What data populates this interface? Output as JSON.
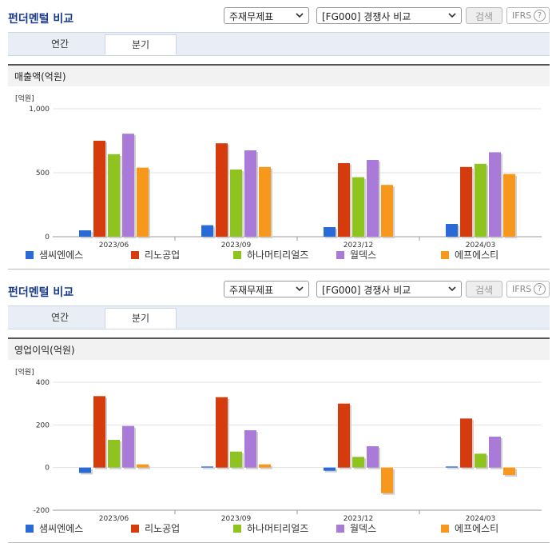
{
  "toolbar": {
    "title": "펀더멘털 비교",
    "select1": "주재무제표",
    "select2": "[FG000] 경쟁사 비교",
    "search_label": "검색",
    "ifrs_label": "IFRS",
    "help_label": "?"
  },
  "tabs": [
    {
      "label": "연간"
    },
    {
      "label": "분기"
    }
  ],
  "active_tab": "분기",
  "colors": {
    "accent": "#1a3c8c"
  },
  "series": [
    {
      "name": "샘씨엔에스",
      "color": "#2a6ad6"
    },
    {
      "name": "리노공업",
      "color": "#d53b0c"
    },
    {
      "name": "하나머티리얼즈",
      "color": "#8fc31f"
    },
    {
      "name": "월덱스",
      "color": "#a97ad8"
    },
    {
      "name": "에프에스티",
      "color": "#f7981d"
    }
  ],
  "chart_data": [
    {
      "type": "bar",
      "title": "매출액(억원)",
      "unit_label": "[억원]",
      "categories": [
        "2023/06",
        "2023/09",
        "2023/12",
        "2024/03"
      ],
      "ylim": [
        0,
        1000
      ],
      "yticks": [
        0,
        500,
        1000
      ],
      "ytick_labels": [
        "0",
        "500",
        "1,000"
      ],
      "series": [
        {
          "name": "샘씨엔에스",
          "values": [
            50,
            90,
            75,
            100
          ]
        },
        {
          "name": "리노공업",
          "values": [
            750,
            730,
            575,
            545
          ]
        },
        {
          "name": "하나머티리얼즈",
          "values": [
            645,
            525,
            465,
            570
          ]
        },
        {
          "name": "월덱스",
          "values": [
            805,
            675,
            600,
            660
          ]
        },
        {
          "name": "에프에스티",
          "values": [
            540,
            545,
            405,
            490
          ]
        }
      ],
      "legend": "bottom",
      "grid": true
    },
    {
      "type": "bar",
      "title": "영업이익(억원)",
      "unit_label": "[억원]",
      "categories": [
        "2023/06",
        "2023/09",
        "2023/12",
        "2024/03"
      ],
      "ylim": [
        -200,
        400
      ],
      "yticks": [
        -200,
        0,
        200,
        400
      ],
      "ytick_labels": [
        "-200",
        "0",
        "200",
        "400"
      ],
      "series": [
        {
          "name": "샘씨엔에스",
          "values": [
            -25,
            5,
            -15,
            5
          ]
        },
        {
          "name": "리노공업",
          "values": [
            335,
            330,
            300,
            230
          ]
        },
        {
          "name": "하나머티리얼즈",
          "values": [
            130,
            75,
            50,
            65
          ]
        },
        {
          "name": "월덱스",
          "values": [
            195,
            175,
            100,
            145
          ]
        },
        {
          "name": "에프에스티",
          "values": [
            15,
            15,
            -120,
            -35
          ]
        }
      ],
      "legend": "bottom",
      "grid": true
    }
  ]
}
